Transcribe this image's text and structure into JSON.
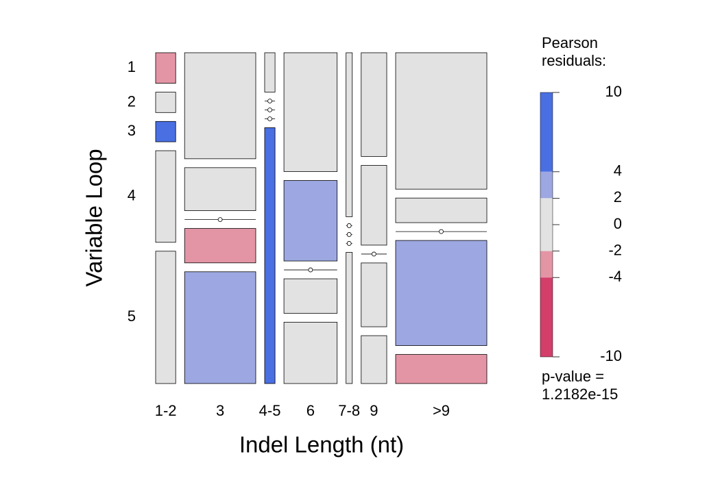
{
  "chart_data": {
    "type": "mosaic",
    "x_label": "Indel Length (nt)",
    "y_label": "Variable Loop",
    "categories": [
      "1-2",
      "3",
      "4-5",
      "6",
      "7-8",
      "9",
      ">9"
    ],
    "rows": [
      "1",
      "2",
      "3",
      "4",
      "5"
    ],
    "counts": [
      [
        3,
        2,
        2,
        9,
        13
      ],
      [
        37,
        15,
        0,
        12,
        39
      ],
      [
        2,
        0,
        0,
        0,
        13
      ],
      [
        31,
        21,
        0,
        9,
        16
      ],
      [
        5,
        0,
        0,
        0,
        4
      ],
      [
        13,
        10,
        0,
        8,
        6
      ],
      [
        61,
        11,
        0,
        47,
        13
      ]
    ],
    "cell_colors": [
      [
        "#e495a5",
        "#e2e2e2",
        "#4a6fe3",
        "#e2e2e2",
        "#e2e2e2"
      ],
      [
        "#e2e2e2",
        "#e2e2e2",
        null,
        "#e495a5",
        "#9da8e2"
      ],
      [
        "#e2e2e2",
        null,
        null,
        null,
        "#4a6fe3"
      ],
      [
        "#e2e2e2",
        "#9da8e2",
        null,
        "#e2e2e2",
        "#e2e2e2"
      ],
      [
        "#e2e2e2",
        null,
        null,
        null,
        "#e2e2e2"
      ],
      [
        "#e2e2e2",
        "#e2e2e2",
        null,
        "#e2e2e2",
        "#e2e2e2"
      ],
      [
        "#e2e2e2",
        "#e2e2e2",
        null,
        "#9da8e2",
        "#e495a5"
      ]
    ],
    "legend": {
      "title": [
        "Pearson",
        "residuals:"
      ],
      "ylim": [
        -10,
        10
      ],
      "yticks": [
        -10,
        -4,
        -2,
        0,
        2,
        4,
        10
      ],
      "bins": [
        {
          "from": 4,
          "to": 10,
          "color": "#4a6fe3"
        },
        {
          "from": 2,
          "to": 4,
          "color": "#9da8e2"
        },
        {
          "from": -2,
          "to": 2,
          "color": "#e2e2e2"
        },
        {
          "from": -4,
          "to": -2,
          "color": "#e495a5"
        },
        {
          "from": -10,
          "to": -4,
          "color": "#d33f6a"
        }
      ]
    },
    "p_value": [
      "p-value =",
      "1.2182e-15"
    ]
  }
}
